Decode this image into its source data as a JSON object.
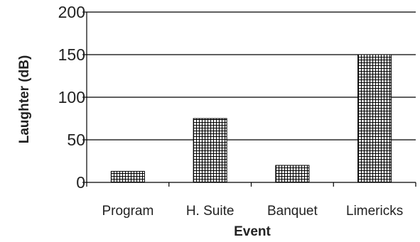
{
  "chart_data": {
    "type": "bar",
    "title": "",
    "xlabel": "Event",
    "ylabel": "Laughter (dB)",
    "categories": [
      "Program",
      "H. Suite",
      "Banquet",
      "Limericks"
    ],
    "values": [
      13,
      75,
      20,
      150
    ],
    "ylim": [
      0,
      200
    ],
    "yticks": [
      0,
      50,
      100,
      150,
      200
    ],
    "grid": "horizontal",
    "legend": "none",
    "bar_fill": "grid-hatch",
    "colors": {
      "axis": "#000000",
      "gridline": "#000000",
      "bar_background": "#ffffff",
      "bar_hatch": "#000000",
      "text": "#222222"
    }
  }
}
